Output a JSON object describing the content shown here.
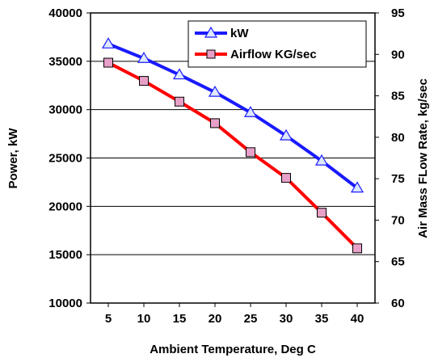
{
  "chart_data": {
    "type": "line",
    "x": [
      5,
      10,
      15,
      20,
      25,
      30,
      35,
      40
    ],
    "xlabel": "Ambient Temperature, Deg C",
    "ylabel": "Power, kW",
    "y2label": "Air Mass FLow Rate, kg/sec",
    "ylim": [
      10000,
      40000
    ],
    "y2lim": [
      60,
      95
    ],
    "yticks": [
      "10000",
      "15000",
      "20000",
      "25000",
      "30000",
      "35000",
      "40000"
    ],
    "y2ticks": [
      "60",
      "65",
      "70",
      "75",
      "80",
      "85",
      "90",
      "95"
    ],
    "xticks": [
      "5",
      "10",
      "15",
      "20",
      "25",
      "30",
      "35",
      "40"
    ],
    "grid": "horizontal",
    "legend_position": "top-right",
    "series": [
      {
        "name": "kW",
        "axis": "left",
        "color": "#1a1aff",
        "marker": "triangle",
        "marker_fill": "#dde8ff",
        "values": [
          36800,
          35300,
          33600,
          31800,
          29700,
          27300,
          24700,
          21900
        ]
      },
      {
        "name": "Airflow KG/sec",
        "axis": "right",
        "color": "#ff0000",
        "marker": "square",
        "marker_fill": "#e8a0c8",
        "values": [
          89,
          86.8,
          84.3,
          81.7,
          78.2,
          75.1,
          70.9,
          66.6
        ]
      }
    ]
  }
}
